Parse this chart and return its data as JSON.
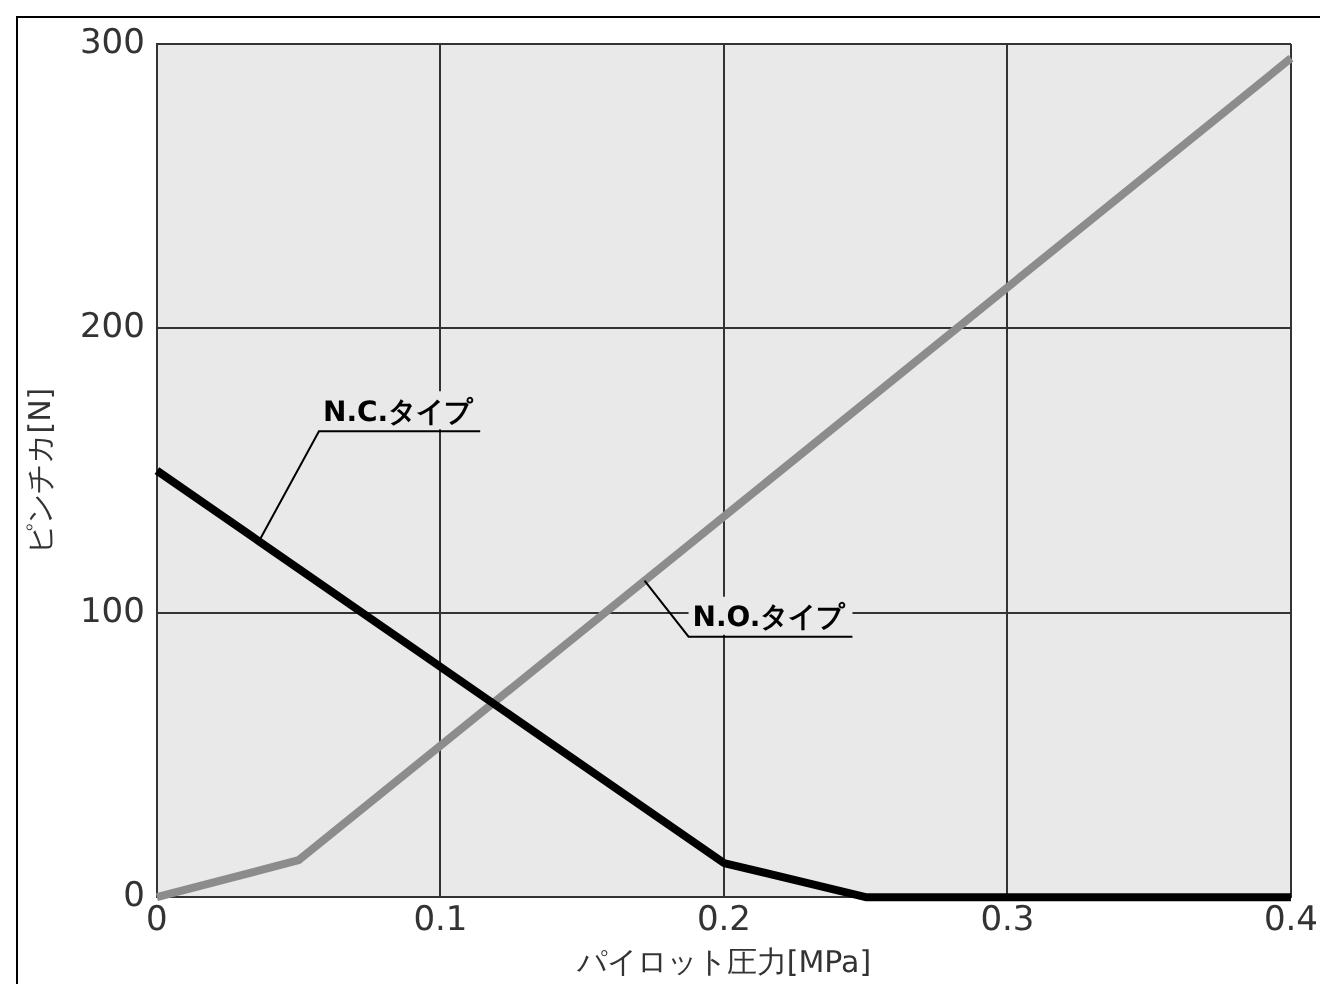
{
  "chart_data": {
    "type": "line",
    "xlabel": "パイロット圧力[MPa]",
    "ylabel": "ピンチカ[N]",
    "xlim": [
      0,
      0.4
    ],
    "xticks": [
      0,
      0.1,
      0.2,
      0.3,
      0.4
    ],
    "ylim": [
      0,
      300
    ],
    "yticks": [
      0,
      100,
      200,
      300
    ],
    "grid": true,
    "legend": false,
    "marker": "none",
    "line_style": "solid",
    "series": [
      {
        "name": "N.C.タイプ",
        "color": "#000000",
        "x": [
          0,
          0.2,
          0.25,
          0.4
        ],
        "values": [
          150,
          12,
          0,
          0
        ]
      },
      {
        "name": "N.O.タイプ",
        "color": "#8c8c8c",
        "x": [
          0,
          0.05,
          0.4
        ],
        "values": [
          0,
          13,
          295
        ]
      }
    ]
  }
}
